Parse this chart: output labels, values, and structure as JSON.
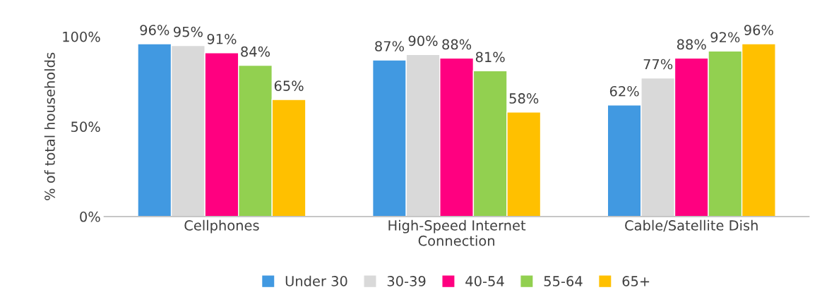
{
  "chart_data": {
    "type": "bar",
    "ylabel": "% of total households",
    "categories": [
      "Cellphones",
      "High-Speed Internet\nConnection",
      "Cable/Satellite Dish"
    ],
    "series": [
      {
        "name": "Under 30",
        "color": "#4199e1",
        "values": [
          96,
          87,
          62
        ],
        "value_labels": [
          "96%",
          "87%",
          "62%"
        ]
      },
      {
        "name": "30-39",
        "color": "#d9d9d9",
        "values": [
          95,
          90,
          77
        ],
        "value_labels": [
          "95%",
          "90%",
          "77%"
        ]
      },
      {
        "name": "40-54",
        "color": "#ff0080",
        "values": [
          91,
          88,
          88
        ],
        "value_labels": [
          "91%",
          "88%",
          "88%"
        ]
      },
      {
        "name": "55-64",
        "color": "#92d050",
        "values": [
          84,
          81,
          92
        ],
        "value_labels": [
          "84%",
          "81%",
          "92%"
        ]
      },
      {
        "name": "65+",
        "color": "#ffc000",
        "values": [
          65,
          58,
          96
        ],
        "value_labels": [
          "65%",
          "58%",
          "96%"
        ]
      }
    ],
    "ylim": [
      0,
      100
    ],
    "yticks": [
      {
        "value": 0,
        "label": "0%"
      },
      {
        "value": 50,
        "label": "50%"
      },
      {
        "value": 100,
        "label": "100%"
      }
    ],
    "grid": false,
    "legend": "bottom"
  }
}
